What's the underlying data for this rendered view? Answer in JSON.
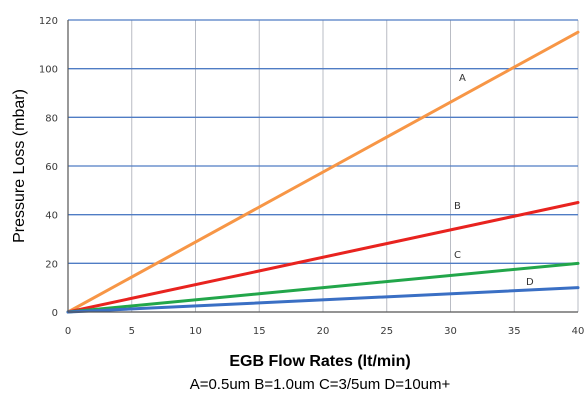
{
  "chart_data": {
    "type": "line",
    "xlabel": "EGB Flow Rates (lt/min)",
    "ylabel": "Pressure Loss (mbar)",
    "caption": "A=0.5um B=1.0um C=3/5um D=10um+",
    "xlim": [
      0,
      40
    ],
    "ylim": [
      0,
      120
    ],
    "xticks": [
      0,
      5,
      10,
      15,
      20,
      25,
      30,
      35,
      40
    ],
    "yticks": [
      0,
      20,
      40,
      60,
      80,
      100,
      120
    ],
    "grid": true,
    "legend": "none",
    "series": [
      {
        "name": "A",
        "color": "#f79646",
        "x": [
          0,
          40
        ],
        "y": [
          0,
          115
        ]
      },
      {
        "name": "B",
        "color": "#e8231f",
        "x": [
          0,
          40
        ],
        "y": [
          0,
          45
        ]
      },
      {
        "name": "C",
        "color": "#22a64a",
        "x": [
          0,
          40
        ],
        "y": [
          0,
          20
        ]
      },
      {
        "name": "D",
        "color": "#3a6fc4",
        "x": [
          0,
          40
        ],
        "y": [
          0,
          10
        ]
      }
    ]
  }
}
